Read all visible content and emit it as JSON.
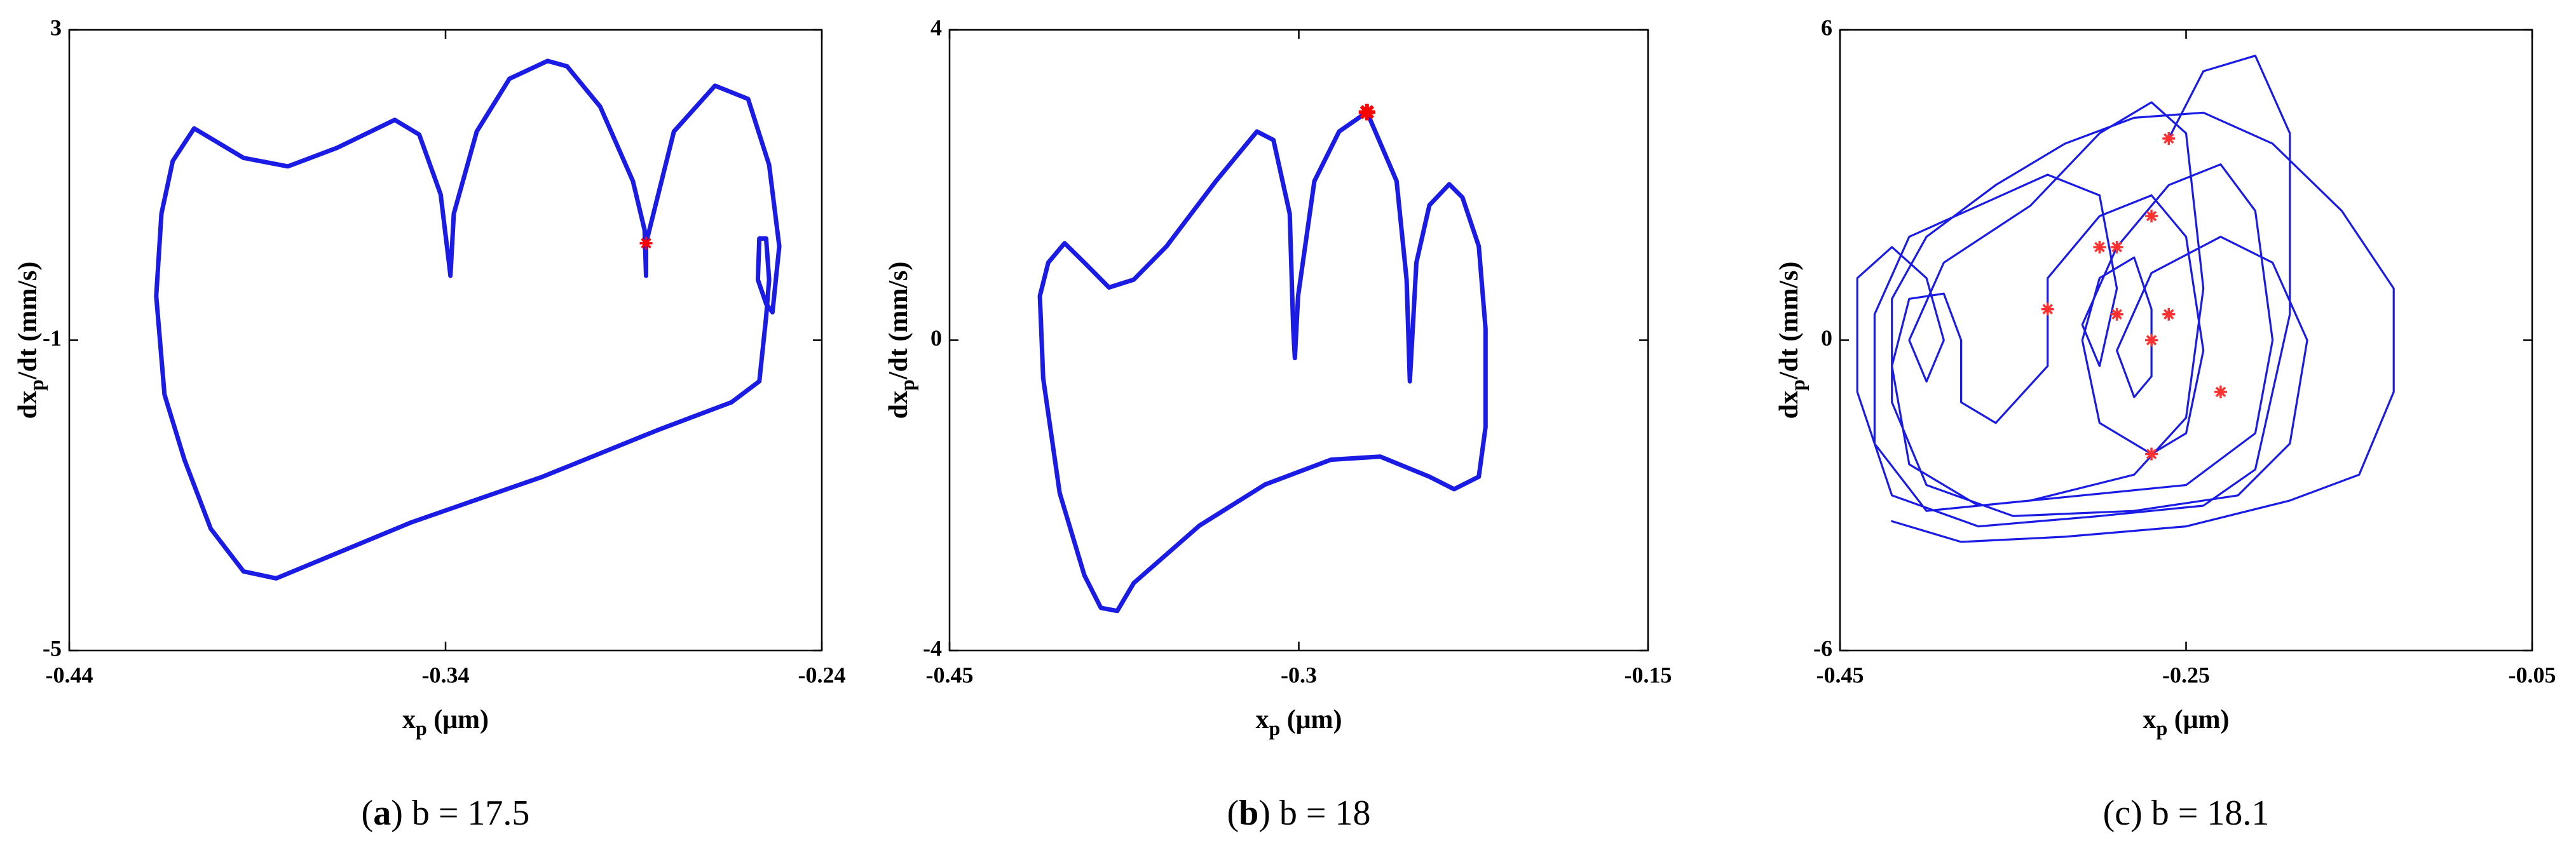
{
  "chart_data": [
    {
      "type": "line",
      "xlabel": [
        "x",
        "p",
        " (μm)"
      ],
      "ylabel": [
        "dx",
        "p",
        "/dt (mm/s)"
      ],
      "caption": [
        "(",
        "a",
        ") b = 17.5"
      ],
      "xlim": [
        -0.44,
        -0.24
      ],
      "ylim": [
        -5,
        3
      ],
      "xticks": [
        -0.44,
        -0.34,
        -0.24
      ],
      "yticks": [
        -5,
        -1,
        3
      ],
      "series": [
        {
          "style": "line",
          "color": "#1b1be6",
          "x": [
            -0.2867,
            -0.2867,
            -0.2793,
            -0.2684,
            -0.2596,
            -0.254,
            -0.2513,
            -0.2531,
            -0.2548,
            -0.257,
            -0.2566,
            -0.2548,
            -0.254,
            -0.2548,
            -0.2566,
            -0.264,
            -0.2837,
            -0.3142,
            -0.3492,
            -0.385,
            -0.3937,
            -0.4024,
            -0.4094,
            -0.4147,
            -0.4169,
            -0.4155,
            -0.4125,
            -0.4068,
            -0.3937,
            -0.3819,
            -0.3688,
            -0.3535,
            -0.347,
            -0.3413,
            -0.3391,
            -0.3387,
            -0.3378,
            -0.3317,
            -0.323,
            -0.3129,
            -0.3077,
            -0.2989,
            -0.2902,
            -0.2871,
            -0.2867
          ],
          "values": [
            -0.17,
            0.25,
            1.69,
            2.28,
            2.11,
            1.26,
            0.21,
            -0.64,
            -0.53,
            -0.22,
            0.31,
            0.31,
            -0.22,
            -0.7,
            -1.53,
            -1.8,
            -2.16,
            -2.76,
            -3.35,
            -4.07,
            -3.98,
            -3.43,
            -2.54,
            -1.7,
            -0.43,
            0.63,
            1.31,
            1.73,
            1.35,
            1.24,
            1.48,
            1.84,
            1.65,
            0.88,
            0.0,
            -0.17,
            0.63,
            1.69,
            2.37,
            2.6,
            2.53,
            2.01,
            1.05,
            0.42,
            -0.17
          ]
        },
        {
          "style": "star",
          "color": "#ff0000",
          "x": [
            -0.2867
          ],
          "values": [
            0.25
          ]
        }
      ]
    },
    {
      "type": "line",
      "xlabel": [
        "x",
        "p",
        " (μm)"
      ],
      "ylabel": [
        "dx",
        "p",
        "/dt (mm/s)"
      ],
      "caption": [
        "(",
        "b",
        ") b = 18"
      ],
      "xlim": [
        -0.45,
        -0.15
      ],
      "ylim": [
        -4,
        4
      ],
      "xticks": [
        -0.45,
        -0.3,
        -0.15
      ],
      "yticks": [
        -4,
        0,
        4
      ],
      "series": [
        {
          "style": "line",
          "color": "#1b1be6",
          "x": [
            -0.2707,
            -0.258,
            -0.2537,
            -0.2523,
            -0.2495,
            -0.2439,
            -0.2354,
            -0.2297,
            -0.2227,
            -0.2198,
            -0.2198,
            -0.2227,
            -0.2333,
            -0.2439,
            -0.265,
            -0.2862,
            -0.3145,
            -0.3427,
            -0.3709,
            -0.378,
            -0.385,
            -0.3921,
            -0.4027,
            -0.4098,
            -0.4112,
            -0.4076,
            -0.4006,
            -0.3921,
            -0.3815,
            -0.3709,
            -0.3568,
            -0.3356,
            -0.318,
            -0.3109,
            -0.3039,
            -0.3024,
            -0.3017,
            -0.3003,
            -0.2933,
            -0.2827,
            -0.2707
          ],
          "values": [
            2.94,
            2.05,
            0.78,
            -0.53,
            1.0,
            1.74,
            2.01,
            1.84,
            1.21,
            0.15,
            -1.12,
            -1.76,
            -1.92,
            -1.76,
            -1.5,
            -1.54,
            -1.86,
            -2.39,
            -3.13,
            -3.49,
            -3.45,
            -3.03,
            -1.97,
            -0.49,
            0.57,
            1.0,
            1.25,
            1.0,
            0.68,
            0.78,
            1.21,
            2.05,
            2.69,
            2.58,
            1.63,
            0.15,
            -0.23,
            0.57,
            2.05,
            2.69,
            2.94
          ]
        },
        {
          "style": "star",
          "color": "#ff0000",
          "x": [
            -0.2707
          ],
          "values": [
            2.94
          ]
        }
      ]
    },
    {
      "type": "line",
      "xlabel": [
        "x",
        "p",
        " (μm)"
      ],
      "ylabel": [
        "dx",
        "p",
        "/dt (mm/s)"
      ],
      "caption": [
        "(c) b = 18.1"
      ],
      "xlim": [
        -0.45,
        -0.05
      ],
      "ylim": [
        -6,
        6
      ],
      "xticks": [
        -0.45,
        -0.25,
        -0.05
      ],
      "yticks": [
        -6,
        0,
        6
      ],
      "series": [
        {
          "style": "line",
          "color": "#1b1be6",
          "x": [
            -0.26,
            -0.24,
            -0.21,
            -0.19,
            -0.19,
            -0.21,
            -0.24,
            -0.3,
            -0.37,
            -0.42,
            -0.44,
            -0.44,
            -0.42,
            -0.4,
            -0.39,
            -0.4,
            -0.41,
            -0.39,
            -0.34,
            -0.3,
            -0.27,
            -0.25,
            -0.24,
            -0.25,
            -0.28,
            -0.34,
            -0.4,
            -0.43,
            -0.43,
            -0.41,
            -0.37,
            -0.33,
            -0.3,
            -0.29,
            -0.3,
            -0.31,
            -0.29,
            -0.26,
            -0.23,
            -0.21,
            -0.2,
            -0.21,
            -0.25,
            -0.31,
            -0.37,
            -0.41,
            -0.42,
            -0.41,
            -0.39,
            -0.38,
            -0.38,
            -0.36,
            -0.33,
            -0.33,
            -0.3,
            -0.27,
            -0.25,
            -0.24,
            -0.25,
            -0.27,
            -0.3,
            -0.31,
            -0.3,
            -0.28,
            -0.27,
            -0.27,
            -0.28,
            -0.29,
            -0.27,
            -0.23,
            -0.2,
            -0.18,
            -0.19,
            -0.22,
            -0.28,
            -0.35,
            -0.4,
            -0.42,
            -0.42,
            -0.4,
            -0.36,
            -0.32,
            -0.28,
            -0.24,
            -0.2,
            -0.16,
            -0.13,
            -0.13,
            -0.15,
            -0.19,
            -0.25,
            -0.32,
            -0.38,
            -0.42
          ],
          "values": [
            3.9,
            5.2,
            5.5,
            4.0,
            0.5,
            -2.5,
            -3.2,
            -3.4,
            -3.6,
            -3.0,
            -1.0,
            1.2,
            1.8,
            1.2,
            0,
            -0.8,
            0,
            1.5,
            2.6,
            4.0,
            4.6,
            4.0,
            1.0,
            -1.5,
            -2.6,
            -3.1,
            -3.3,
            -2.0,
            0.5,
            2.0,
            2.6,
            3.2,
            2.8,
            1.0,
            -0.5,
            0.3,
            1.8,
            3.0,
            3.4,
            2.5,
            0,
            -1.8,
            -2.8,
            -3.0,
            -3.2,
            -2.4,
            -0.5,
            0.8,
            0.9,
            0,
            -1.2,
            -1.6,
            -0.5,
            1.2,
            2.4,
            2.8,
            2.0,
            -0.2,
            -1.8,
            -2.2,
            -1.6,
            0,
            1.2,
            1.6,
            0.6,
            -0.7,
            -1.1,
            -0.2,
            1.3,
            2.0,
            1.5,
            0,
            -2.0,
            -3.0,
            -3.3,
            -3.4,
            -2.8,
            -1.2,
            0.8,
            2.0,
            3.0,
            3.8,
            4.3,
            4.4,
            3.8,
            2.5,
            1.0,
            -1.0,
            -2.6,
            -3.1,
            -3.6,
            -3.8,
            -3.9,
            -3.5
          ]
        },
        {
          "style": "star",
          "color": "#ff3030",
          "x": [
            -0.26,
            -0.27,
            -0.29,
            -0.3,
            -0.33,
            -0.29,
            -0.26,
            -0.27,
            -0.23,
            -0.27
          ],
          "values": [
            3.9,
            2.4,
            1.8,
            1.8,
            0.6,
            0.5,
            0.5,
            0,
            -1.0,
            -2.2
          ]
        }
      ]
    }
  ]
}
